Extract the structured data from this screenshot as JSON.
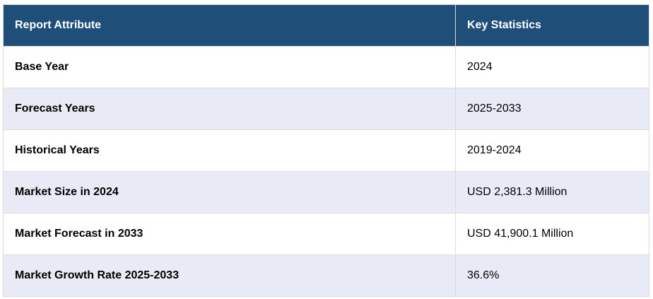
{
  "table": {
    "header": [
      "Report Attribute",
      "Key Statistics"
    ],
    "rows": [
      [
        "Base Year",
        "2024"
      ],
      [
        "Forecast Years",
        "2025-2033"
      ],
      [
        "Historical Years",
        "2019-2024"
      ],
      [
        "Market Size in 2024",
        "USD 2,381.3 Million"
      ],
      [
        "Market Forecast in 2033",
        "USD 41,900.1 Million"
      ],
      [
        "Market Growth Rate 2025-2033",
        "36.6%"
      ]
    ]
  }
}
